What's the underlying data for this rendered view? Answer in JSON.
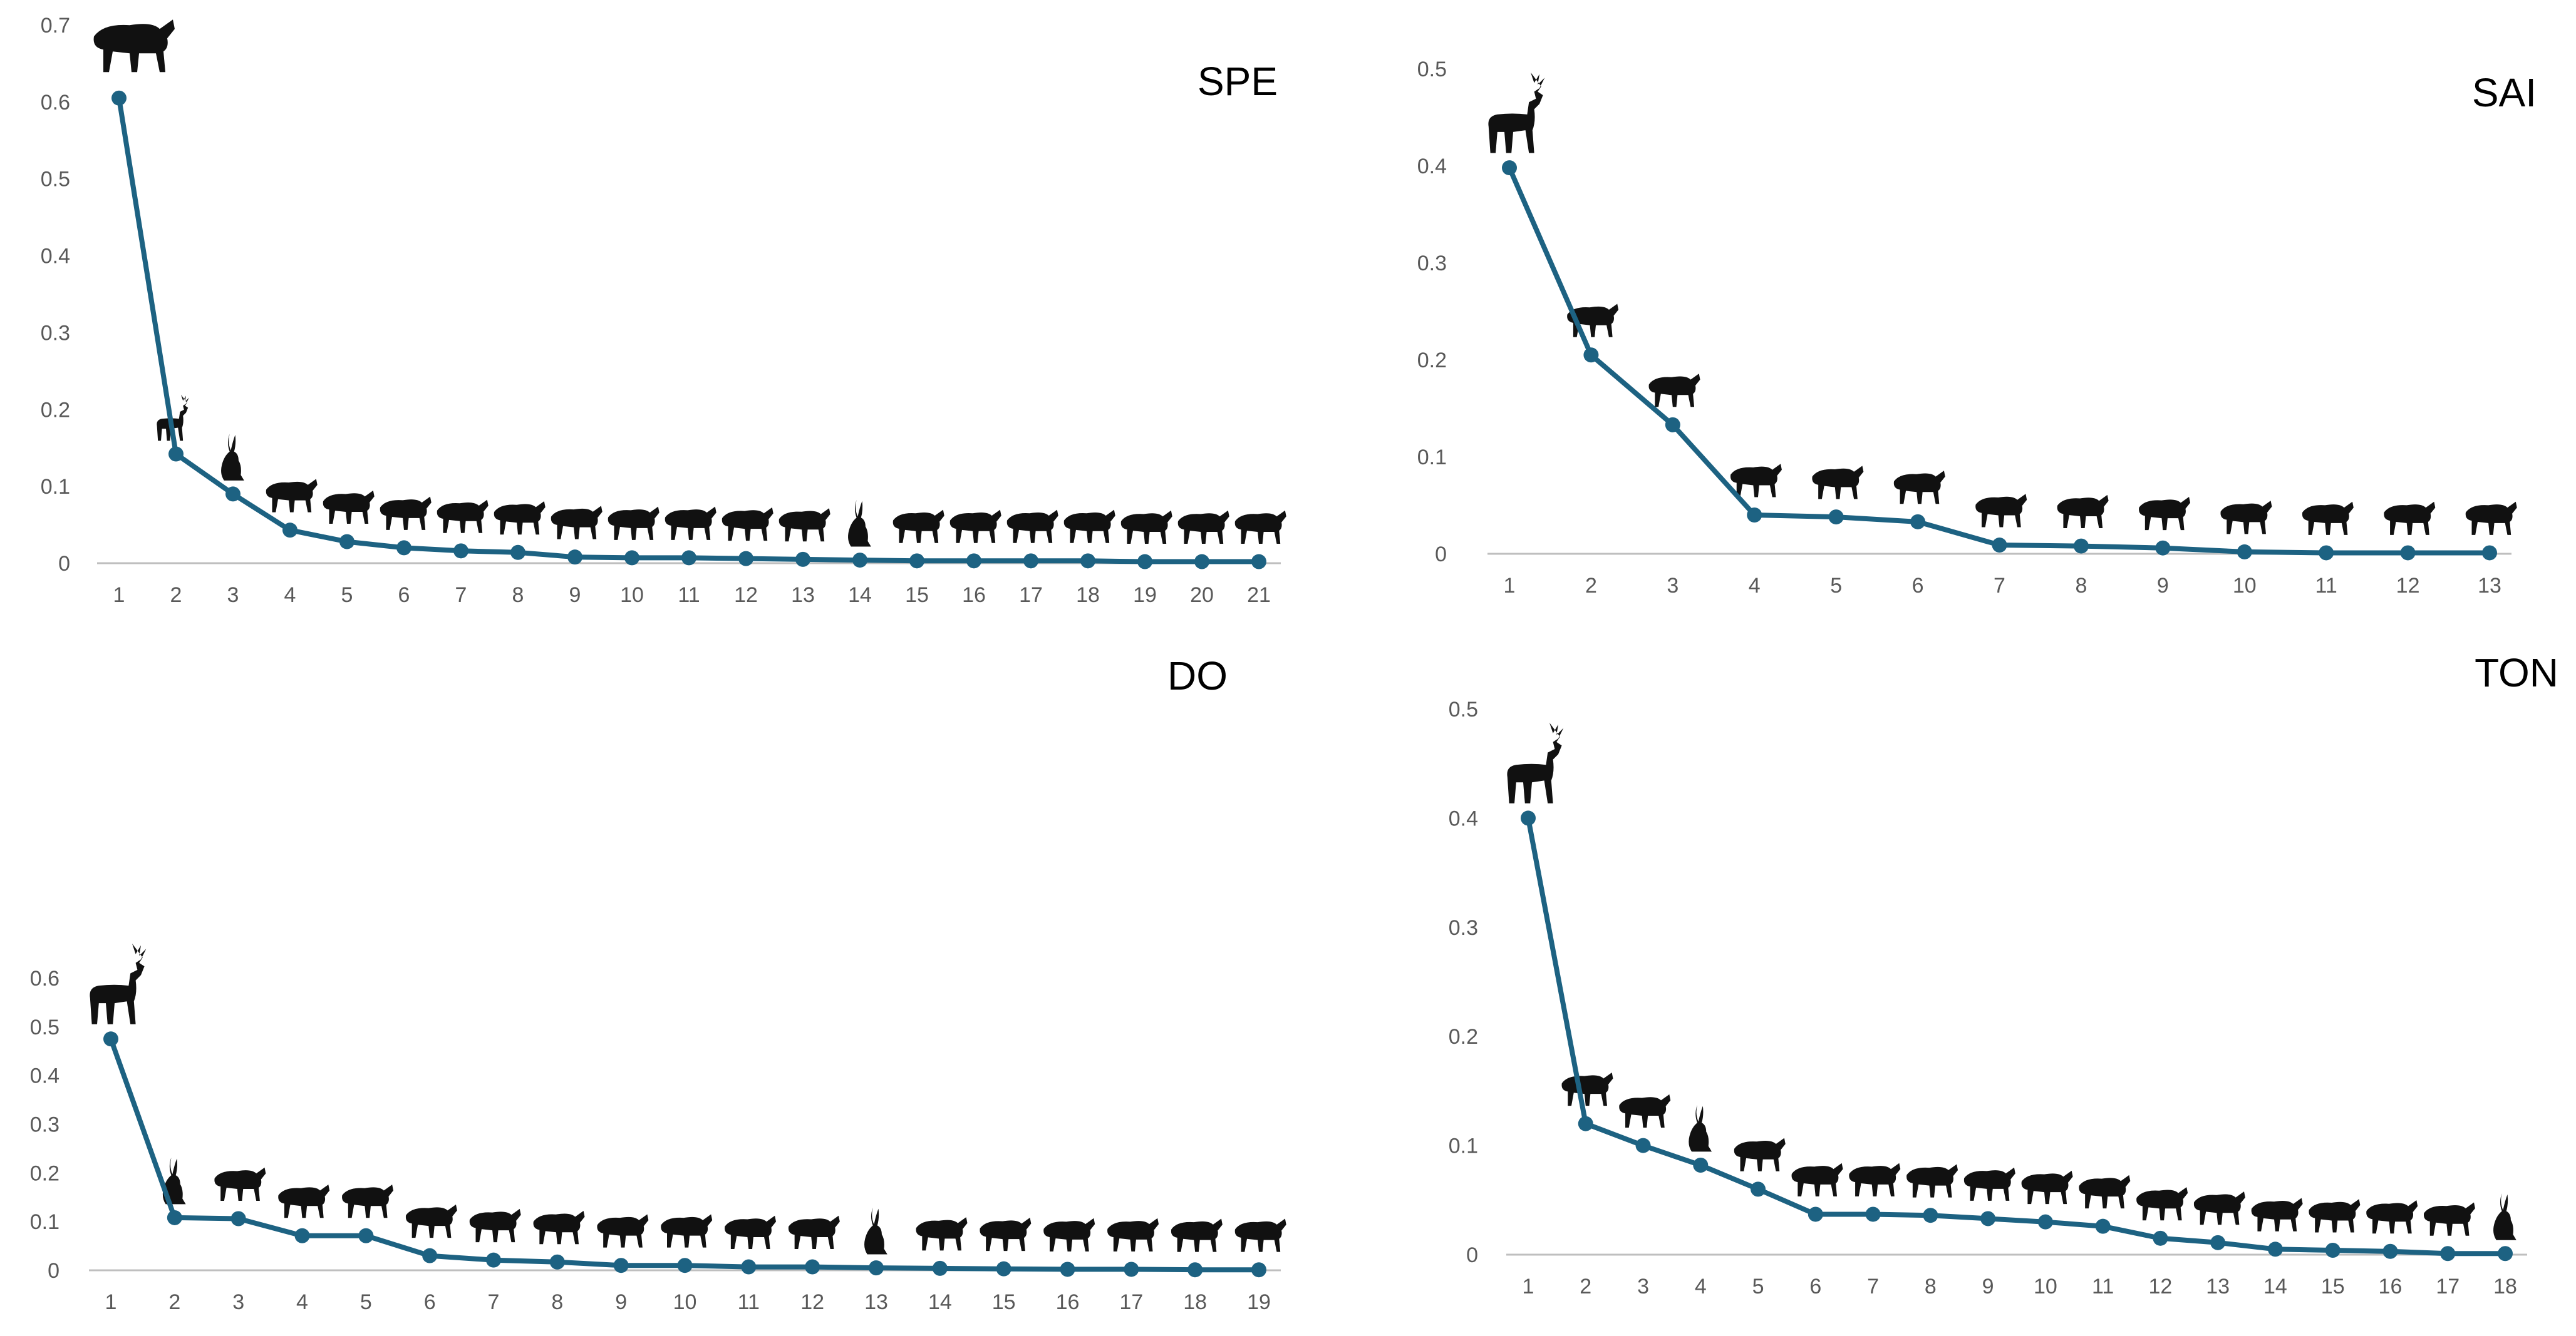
{
  "style": {
    "line_color": "#1d6282",
    "axis_color": "#bfbfbf",
    "label_color": "#595959",
    "silhouette_color": "#111111"
  },
  "chart_data": [
    {
      "title": "SPE",
      "type": "line",
      "categories": [
        "1",
        "2",
        "3",
        "4",
        "5",
        "6",
        "7",
        "8",
        "9",
        "10",
        "11",
        "12",
        "13",
        "14",
        "15",
        "16",
        "17",
        "18",
        "19",
        "20",
        "21"
      ],
      "values": [
        0.605,
        0.142,
        0.09,
        0.043,
        0.028,
        0.02,
        0.016,
        0.014,
        0.008,
        0.007,
        0.007,
        0.006,
        0.005,
        0.004,
        0.003,
        0.003,
        0.003,
        0.003,
        0.002,
        0.002,
        0.002
      ],
      "ylim": [
        0,
        0.7
      ],
      "yticks": [
        "0",
        "0.1",
        "0.2",
        "0.3",
        "0.4",
        "0.5",
        "0.6",
        "0.7"
      ],
      "xlabel": "",
      "ylabel": "",
      "grid": false,
      "annotations": [
        "peccary-icon",
        "deer-icon",
        "rabbit-icon",
        "squirrel-icon",
        "coyote-icon",
        "fox-icon",
        "raccoon-icon",
        "coyote-icon",
        "ocelot-icon",
        "coati-icon",
        "raccoon-icon",
        "cat-icon",
        "skunk-icon",
        "rabbit-icon",
        "badger-icon",
        "ringtail-icon",
        "opossum-icon",
        "skunk-icon",
        "spotted-skunk-icon",
        "weasel-icon",
        "raccoon-icon"
      ]
    },
    {
      "title": "SAI",
      "type": "line",
      "categories": [
        "1",
        "2",
        "3",
        "4",
        "5",
        "6",
        "7",
        "8",
        "9",
        "10",
        "11",
        "12",
        "13"
      ],
      "values": [
        0.398,
        0.205,
        0.133,
        0.04,
        0.038,
        0.033,
        0.009,
        0.008,
        0.006,
        0.002,
        0.001,
        0.001,
        0.001
      ],
      "ylim": [
        0,
        0.5
      ],
      "yticks": [
        "0",
        "0.1",
        "0.2",
        "0.3",
        "0.4",
        "0.5"
      ],
      "xlabel": "",
      "ylabel": "",
      "grid": false,
      "annotations": [
        "deer-icon",
        "squirrel-icon",
        "woodrat-icon",
        "ringtail-icon",
        "fox-icon",
        "coati-icon",
        "opossum-icon",
        "skunk-icon",
        "spotted-skunk-icon",
        "coyote-icon",
        "skunk-icon",
        "ocelot-icon",
        "raccoon-icon"
      ]
    },
    {
      "title": "DO",
      "type": "line",
      "categories": [
        "1",
        "2",
        "3",
        "4",
        "5",
        "6",
        "7",
        "8",
        "9",
        "10",
        "11",
        "12",
        "13",
        "14",
        "15",
        "16",
        "17",
        "18",
        "19"
      ],
      "values": [
        0.475,
        0.108,
        0.106,
        0.071,
        0.071,
        0.03,
        0.021,
        0.017,
        0.01,
        0.01,
        0.007,
        0.007,
        0.005,
        0.004,
        0.003,
        0.002,
        0.002,
        0.001,
        0.001
      ],
      "ylim": [
        0,
        0.6
      ],
      "yticks": [
        "0",
        "0.1",
        "0.2",
        "0.3",
        "0.4",
        "0.5",
        "0.6"
      ],
      "xlabel": "",
      "ylabel": "",
      "grid": false,
      "annotations": [
        "deer-icon",
        "rabbit-icon",
        "fox-icon",
        "squirrel-icon",
        "coati-icon",
        "skunk-icon",
        "ringtail-icon",
        "puma-icon",
        "coyote-icon",
        "ocelot-icon",
        "skunk-icon",
        "porcupine-icon",
        "rabbit-icon",
        "jaguar-icon",
        "peccary-icon",
        "coyote-icon",
        "spotted-skunk-icon",
        "raccoon-icon",
        "opossum-icon"
      ]
    },
    {
      "title": "TON",
      "type": "line",
      "categories": [
        "1",
        "2",
        "3",
        "4",
        "5",
        "6",
        "7",
        "8",
        "9",
        "10",
        "11",
        "12",
        "13",
        "14",
        "15",
        "16",
        "17",
        "18"
      ],
      "values": [
        0.4,
        0.12,
        0.1,
        0.082,
        0.06,
        0.037,
        0.037,
        0.036,
        0.033,
        0.03,
        0.026,
        0.015,
        0.011,
        0.005,
        0.004,
        0.003,
        0.001,
        0.001
      ],
      "ylim": [
        0,
        0.5
      ],
      "yticks": [
        "0",
        "0.1",
        "0.2",
        "0.3",
        "0.4",
        "0.5"
      ],
      "xlabel": "",
      "ylabel": "",
      "grid": false,
      "annotations": [
        "deer-icon",
        "coati-icon",
        "opossum-icon",
        "rabbit-icon",
        "fox-icon",
        "squirrel-icon",
        "ocelot-icon",
        "ringtail-icon",
        "puma-icon",
        "skunk-icon",
        "raccoon-icon",
        "opossum-icon",
        "badger-icon",
        "skunk-icon",
        "spotted-skunk-icon",
        "peccary-icon",
        "coyote-icon",
        "rabbit-icon"
      ]
    }
  ]
}
